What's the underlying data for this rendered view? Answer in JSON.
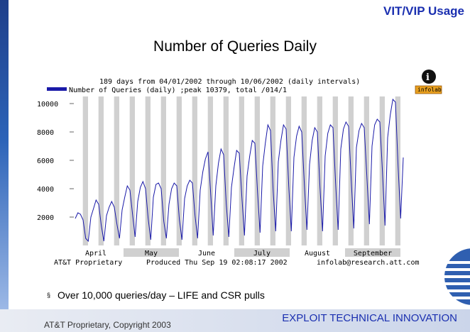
{
  "header": {
    "title": "VIT/VIP Usage"
  },
  "page_title": "Number of Queries Daily",
  "chart_data": {
    "type": "line",
    "title_line1": "189 days from 04/01/2002 through 10/06/2002 (daily intervals)",
    "legend_text": "Number of Queries (daily) ;peak 10379, total /014/1",
    "info_badge": "infolab",
    "y_ticks": [
      2000,
      4000,
      6000,
      8000,
      10000
    ],
    "ylim": [
      0,
      10500
    ],
    "months": [
      "April",
      "May",
      "June",
      "July",
      "August",
      "September"
    ],
    "footer_left": "AT&T Proprietary",
    "footer_center": "Produced Thu Sep 19 02:08:17 2002",
    "footer_right": "infolab@research.att.com",
    "series": [
      {
        "name": "Number of Queries (daily)",
        "color": "#1a1aa8",
        "values": [
          1900,
          2300,
          2200,
          1800,
          500,
          300,
          2000,
          2600,
          3200,
          2900,
          1400,
          300,
          2100,
          2700,
          3100,
          2700,
          1500,
          500,
          2500,
          3400,
          4200,
          3900,
          2200,
          600,
          3100,
          4100,
          4500,
          4000,
          1900,
          400,
          3400,
          4300,
          4400,
          4000,
          1700,
          500,
          2900,
          4000,
          4400,
          4200,
          1800,
          400,
          3300,
          4200,
          4600,
          4400,
          2100,
          500,
          3900,
          5200,
          6100,
          6600,
          3700,
          700,
          4200,
          5800,
          6800,
          6400,
          2900,
          600,
          4100,
          5500,
          6700,
          6500,
          3400,
          700,
          4900,
          6300,
          7400,
          7200,
          3800,
          900,
          5600,
          7200,
          8500,
          8100,
          3900,
          1000,
          5900,
          7400,
          8500,
          8200,
          4200,
          1000,
          6200,
          7700,
          8400,
          8000,
          4300,
          1100,
          5700,
          7400,
          8300,
          8000,
          4100,
          1000,
          6300,
          7900,
          8500,
          8300,
          4400,
          1100,
          6800,
          8200,
          8700,
          8400,
          4600,
          1200,
          6900,
          8100,
          8600,
          8300,
          4900,
          1500,
          7000,
          8500,
          8900,
          8700,
          5200,
          1400,
          7600,
          9200,
          10300,
          10100,
          5600,
          1900,
          6200
        ]
      }
    ]
  },
  "bullet": {
    "mark": "§",
    "text": "Over 10,000 queries/day – LIFE and CSR pulls"
  },
  "footer": {
    "left": "AT&T Proprietary, Copyright 2003",
    "right": "EXPLOIT TECHNICAL INNOVATION"
  }
}
